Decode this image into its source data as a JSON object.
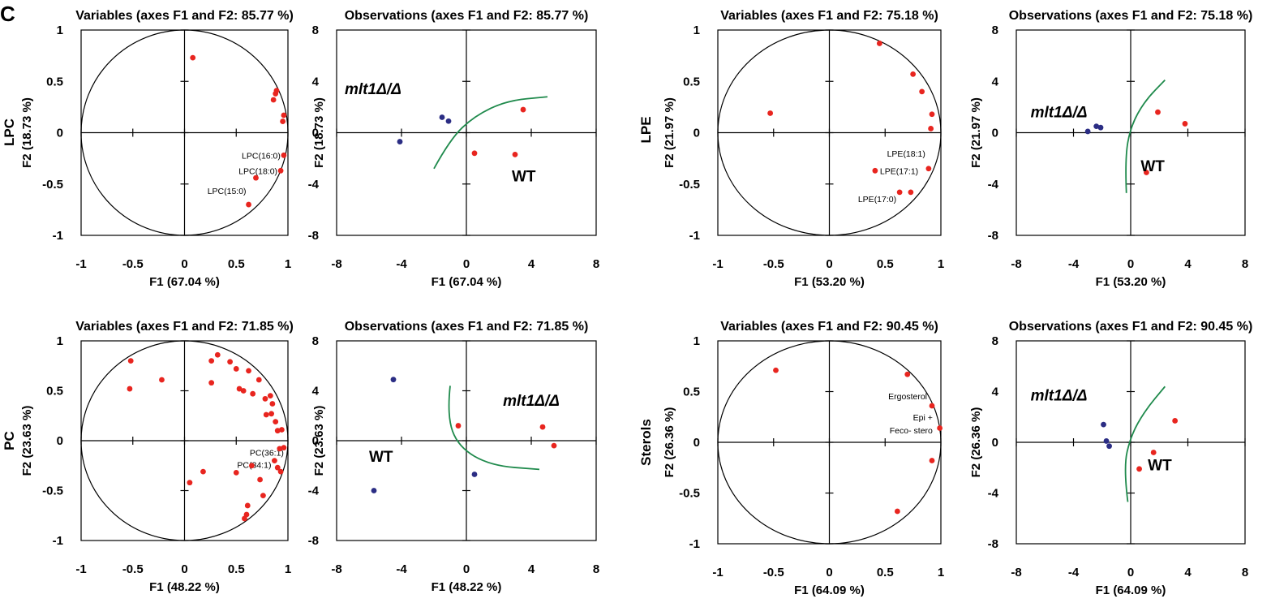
{
  "panel_letter": "C",
  "chart_data": [
    {
      "type": "scatter",
      "kind": "variables",
      "row_label": "LPC",
      "title": "Variables (axes F1 and F2: 85.77 %)",
      "xlabel": "F1 (67.04 %)",
      "ylabel": "F2 (18.73 %)",
      "xlim": [
        -1,
        1
      ],
      "ylim": [
        -1,
        1
      ],
      "xticks": [
        "-1",
        "-0.5",
        "0",
        "0.5",
        "1"
      ],
      "yticks": [
        "-1",
        "-0.5",
        "0",
        "0.5",
        "1"
      ],
      "circle": true,
      "point_color": "#e8251f",
      "points": [
        {
          "x": 0.08,
          "y": 0.73
        },
        {
          "x": 0.89,
          "y": 0.41
        },
        {
          "x": 0.88,
          "y": 0.38
        },
        {
          "x": 0.86,
          "y": 0.32
        },
        {
          "x": 0.96,
          "y": 0.17
        },
        {
          "x": 0.95,
          "y": 0.11
        },
        {
          "x": 0.96,
          "y": -0.22,
          "label": "LPC(16:0)"
        },
        {
          "x": 0.93,
          "y": -0.37,
          "label": "LPC(18:0)"
        },
        {
          "x": 0.69,
          "y": -0.44
        },
        {
          "x": 0.62,
          "y": -0.7,
          "label": "LPC(15:0)"
        }
      ]
    },
    {
      "type": "scatter",
      "kind": "observations",
      "title": "Observations (axes F1 and F2: 85.77 %)",
      "xlabel": "F1 (67.04 %)",
      "ylabel": "F2 (18.73 %)",
      "xlim": [
        -8,
        8
      ],
      "ylim": [
        -8,
        8
      ],
      "xticks": [
        "-8",
        "-4",
        "0",
        "4",
        "8"
      ],
      "yticks": [
        "-8",
        "-4",
        "0",
        "4",
        "8"
      ],
      "groups": [
        {
          "name": "mlt1Δ/Δ",
          "italic": true,
          "color": "#2b2d84",
          "points": [
            {
              "x": -1.5,
              "y": 1.2
            },
            {
              "x": -1.1,
              "y": 0.9
            },
            {
              "x": -4.1,
              "y": -0.7
            }
          ]
        },
        {
          "name": "WT",
          "italic": false,
          "color": "#e8251f",
          "points": [
            {
              "x": 3.5,
              "y": 1.8
            },
            {
              "x": 0.5,
              "y": -1.6
            },
            {
              "x": 3.0,
              "y": -1.7
            }
          ]
        }
      ],
      "boundary": [
        [
          -2.0,
          -2.8
        ],
        [
          -1.0,
          -0.5
        ],
        [
          0.5,
          1.3
        ],
        [
          2.5,
          2.5
        ],
        [
          5.0,
          2.8
        ]
      ]
    },
    {
      "type": "scatter",
      "kind": "variables",
      "row_label": "LPE",
      "title": "Variables (axes F1 and F2: 75.18 %)",
      "xlabel": "F1 (53.20 %)",
      "ylabel": "F2 (21.97 %)",
      "xlim": [
        -1,
        1
      ],
      "ylim": [
        -1,
        1
      ],
      "xticks": [
        "-1",
        "-0.5",
        "0",
        "0.5",
        "1"
      ],
      "yticks": [
        "-1",
        "-0.5",
        "0",
        "0.5",
        "1"
      ],
      "circle": true,
      "point_color": "#e8251f",
      "points": [
        {
          "x": -0.53,
          "y": 0.19
        },
        {
          "x": 0.45,
          "y": 0.87
        },
        {
          "x": 0.75,
          "y": 0.57
        },
        {
          "x": 0.83,
          "y": 0.4
        },
        {
          "x": 0.92,
          "y": 0.18
        },
        {
          "x": 0.91,
          "y": 0.04
        },
        {
          "x": 0.89,
          "y": -0.35,
          "label": "LPE(18:1)"
        },
        {
          "x": 0.41,
          "y": -0.37,
          "label": "LPE(17:1)"
        },
        {
          "x": 0.63,
          "y": -0.58,
          "label": "LPE(17:0)"
        },
        {
          "x": 0.73,
          "y": -0.58
        }
      ]
    },
    {
      "type": "scatter",
      "kind": "observations",
      "title": "Observations (axes F1 and F2: 75.18 %)",
      "xlabel": "F1 (53.20 %)",
      "ylabel": "F2 (21.97 %)",
      "xlim": [
        -8,
        8
      ],
      "ylim": [
        -8,
        8
      ],
      "xticks": [
        "-8",
        "-4",
        "0",
        "4",
        "8"
      ],
      "yticks": [
        "-8",
        "-4",
        "0",
        "4",
        "8"
      ],
      "groups": [
        {
          "name": "mlt1Δ/Δ",
          "italic": true,
          "color": "#2b2d84",
          "points": [
            {
              "x": -2.4,
              "y": 0.5
            },
            {
              "x": -2.1,
              "y": 0.4
            },
            {
              "x": -3.0,
              "y": 0.1
            }
          ]
        },
        {
          "name": "WT",
          "italic": false,
          "color": "#e8251f",
          "points": [
            {
              "x": 1.9,
              "y": 1.6
            },
            {
              "x": 3.8,
              "y": 0.7
            },
            {
              "x": 1.1,
              "y": -3.1
            }
          ]
        }
      ],
      "boundary": [
        [
          -0.3,
          -4.7
        ],
        [
          -0.4,
          -2.0
        ],
        [
          0.0,
          0.5
        ],
        [
          1.0,
          2.5
        ],
        [
          2.4,
          4.1
        ]
      ]
    },
    {
      "type": "scatter",
      "kind": "variables",
      "row_label": "PC",
      "title": "Variables (axes F1 and F2: 71.85 %)",
      "xlabel": "F1 (48.22 %)",
      "ylabel": "F2 (23.63 %)",
      "xlim": [
        -1,
        1
      ],
      "ylim": [
        -1,
        1
      ],
      "xticks": [
        "-1",
        "-0.5",
        "0",
        "0.5",
        "1"
      ],
      "yticks": [
        "-1",
        "-0.5",
        "0",
        "0.5",
        "1"
      ],
      "circle": true,
      "point_color": "#e8251f",
      "points": [
        {
          "x": -0.52,
          "y": 0.8
        },
        {
          "x": -0.53,
          "y": 0.52
        },
        {
          "x": -0.22,
          "y": 0.61
        },
        {
          "x": 0.26,
          "y": 0.8
        },
        {
          "x": 0.32,
          "y": 0.86
        },
        {
          "x": 0.44,
          "y": 0.79
        },
        {
          "x": 0.26,
          "y": 0.58
        },
        {
          "x": 0.5,
          "y": 0.72
        },
        {
          "x": 0.62,
          "y": 0.7
        },
        {
          "x": 0.72,
          "y": 0.61
        },
        {
          "x": 0.53,
          "y": 0.52
        },
        {
          "x": 0.57,
          "y": 0.5
        },
        {
          "x": 0.66,
          "y": 0.47
        },
        {
          "x": 0.83,
          "y": 0.45
        },
        {
          "x": 0.85,
          "y": 0.37
        },
        {
          "x": 0.78,
          "y": 0.42
        },
        {
          "x": 0.84,
          "y": 0.27
        },
        {
          "x": 0.79,
          "y": 0.26
        },
        {
          "x": 0.88,
          "y": 0.19
        },
        {
          "x": 0.9,
          "y": 0.1
        },
        {
          "x": 0.94,
          "y": 0.11
        },
        {
          "x": 0.96,
          "y": -0.07,
          "label": "PC(36:1)"
        },
        {
          "x": 0.92,
          "y": -0.08
        },
        {
          "x": 0.87,
          "y": -0.2,
          "label": "PC(34:1)"
        },
        {
          "x": 0.9,
          "y": -0.27
        },
        {
          "x": 0.93,
          "y": -0.31
        },
        {
          "x": 0.65,
          "y": -0.25
        },
        {
          "x": 0.5,
          "y": -0.32
        },
        {
          "x": 0.18,
          "y": -0.31
        },
        {
          "x": 0.05,
          "y": -0.42
        },
        {
          "x": 0.73,
          "y": -0.39
        },
        {
          "x": 0.76,
          "y": -0.55
        },
        {
          "x": 0.61,
          "y": -0.65
        },
        {
          "x": 0.6,
          "y": -0.74
        },
        {
          "x": 0.58,
          "y": -0.78
        }
      ]
    },
    {
      "type": "scatter",
      "kind": "observations",
      "title": "Observations (axes F1 and F2: 71.85 %)",
      "xlabel": "F1 (48.22 %)",
      "ylabel": "F2 (23.63 %)",
      "xlim": [
        -8,
        8
      ],
      "ylim": [
        -8,
        8
      ],
      "xticks": [
        "-8",
        "-4",
        "0",
        "4",
        "8"
      ],
      "yticks": [
        "-8",
        "-4",
        "0",
        "4",
        "8"
      ],
      "groups": [
        {
          "name": "mlt1Δ/Δ",
          "italic": true,
          "color": "#2b2d84",
          "points": [
            {
              "x": -4.5,
              "y": 4.9
            },
            {
              "x": 0.5,
              "y": -2.7
            },
            {
              "x": -5.7,
              "y": -4.0
            }
          ]
        },
        {
          "name": "WT",
          "italic": false,
          "color": "#e8251f",
          "points": [
            {
              "x": -0.5,
              "y": 1.2
            },
            {
              "x": 4.7,
              "y": 1.1
            },
            {
              "x": 5.4,
              "y": -0.4
            }
          ]
        }
      ],
      "boundary": [
        [
          -1.0,
          4.4
        ],
        [
          -1.2,
          2.0
        ],
        [
          -0.5,
          -0.5
        ],
        [
          1.5,
          -2.0
        ],
        [
          4.5,
          -2.3
        ]
      ]
    },
    {
      "type": "scatter",
      "kind": "variables",
      "row_label": "Sterols",
      "title": "Variables (axes F1 and F2: 90.45 %)",
      "xlabel": "F1 (64.09 %)",
      "ylabel": "F2 (26.36 %)",
      "xlim": [
        -1,
        1
      ],
      "ylim": [
        -1,
        1
      ],
      "xticks": [
        "-1",
        "-0.5",
        "0",
        "0.5",
        "1"
      ],
      "yticks": [
        "-1",
        "-0.5",
        "0",
        "0.5",
        "1"
      ],
      "circle": true,
      "point_color": "#e8251f",
      "points": [
        {
          "x": -0.48,
          "y": 0.71
        },
        {
          "x": 0.7,
          "y": 0.67
        },
        {
          "x": 0.92,
          "y": 0.36,
          "label": "Ergosterol"
        },
        {
          "x": 0.99,
          "y": 0.14
        },
        {
          "x": 0.92,
          "y": -0.18
        },
        {
          "x": 0.61,
          "y": -0.68
        }
      ],
      "text_notes": [
        "Epi +",
        "Feco- stero"
      ]
    },
    {
      "type": "scatter",
      "kind": "observations",
      "title": "Observations (axes F1 and F2: 90.45 %)",
      "xlabel": "F1 (64.09 %)",
      "ylabel": "F2 (26.36 %)",
      "xlim": [
        -8,
        8
      ],
      "ylim": [
        -8,
        8
      ],
      "xticks": [
        "-8",
        "-4",
        "0",
        "4",
        "8"
      ],
      "yticks": [
        "-8",
        "-4",
        "0",
        "4",
        "8"
      ],
      "groups": [
        {
          "name": "mlt1Δ/Δ",
          "italic": true,
          "color": "#2b2d84",
          "points": [
            {
              "x": -1.9,
              "y": 1.4
            },
            {
              "x": -1.7,
              "y": 0.1
            },
            {
              "x": -1.5,
              "y": -0.3
            }
          ]
        },
        {
          "name": "WT",
          "italic": false,
          "color": "#e8251f",
          "points": [
            {
              "x": 3.1,
              "y": 1.7
            },
            {
              "x": 1.6,
              "y": -0.8
            },
            {
              "x": 0.6,
              "y": -2.1
            }
          ]
        }
      ],
      "boundary": [
        [
          -0.2,
          -4.7
        ],
        [
          -0.5,
          -2.0
        ],
        [
          0.0,
          0.5
        ],
        [
          1.0,
          2.5
        ],
        [
          2.4,
          4.4
        ]
      ]
    }
  ]
}
